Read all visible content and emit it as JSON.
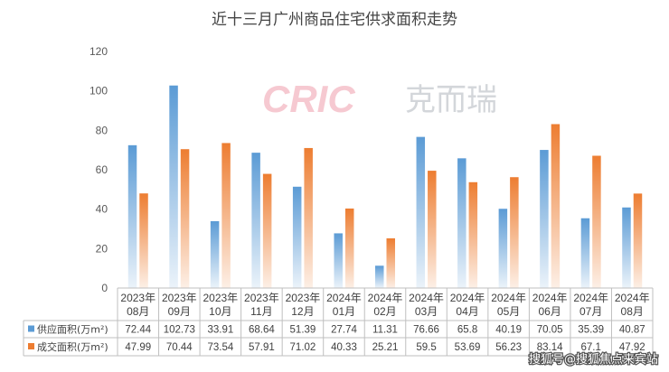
{
  "chart_data": {
    "type": "bar",
    "title": "近十三月广州商品住宅供求面积走势",
    "categories": [
      "2023年08月",
      "2023年09月",
      "2023年10月",
      "2023年11月",
      "2023年12月",
      "2024年01月",
      "2024年02月",
      "2024年03月",
      "2024年04月",
      "2024年05月",
      "2024年06月",
      "2024年07月",
      "2024年08月"
    ],
    "category_lines": [
      [
        "2023年",
        "08月"
      ],
      [
        "2023年",
        "09月"
      ],
      [
        "2023年",
        "10月"
      ],
      [
        "2023年",
        "11月"
      ],
      [
        "2023年",
        "12月"
      ],
      [
        "2024年",
        "01月"
      ],
      [
        "2024年",
        "02月"
      ],
      [
        "2024年",
        "03月"
      ],
      [
        "2024年",
        "04月"
      ],
      [
        "2024年",
        "05月"
      ],
      [
        "2024年",
        "06月"
      ],
      [
        "2024年",
        "07月"
      ],
      [
        "2024年",
        "08月"
      ]
    ],
    "series": [
      {
        "name": "供应面积(万m²)",
        "color": "#5b9bd5",
        "values": [
          72.44,
          102.73,
          33.91,
          68.64,
          51.39,
          27.74,
          11.31,
          76.66,
          65.8,
          40.19,
          70.05,
          35.39,
          40.87
        ],
        "labels": [
          "72.44",
          "102.73",
          "33.91",
          "68.64",
          "51.39",
          "27.74",
          "11.31",
          "76.66",
          "65.8",
          "40.19",
          "70.05",
          "35.39",
          "40.87"
        ]
      },
      {
        "name": "成交面积(万m²)",
        "color": "#ed7d31",
        "values": [
          47.99,
          70.44,
          73.54,
          57.91,
          71.02,
          40.33,
          25.21,
          59.5,
          53.69,
          56.23,
          83.14,
          67.1,
          47.92
        ],
        "labels": [
          "47.99",
          "70.44",
          "73.54",
          "57.91",
          "71.02",
          "40.33",
          "25.21",
          "59.5",
          "53.69",
          "56.23",
          "83.14",
          "67.1",
          "47.92"
        ]
      }
    ],
    "ylim": [
      0,
      120
    ],
    "yticks": [
      0,
      20,
      40,
      60,
      80,
      100,
      120
    ],
    "grid": false,
    "legend": "data-table"
  },
  "logo": {
    "latin": "CRIC",
    "chinese": "克而瑞"
  },
  "watermark": "搜狐号@搜狐焦点来宾站"
}
